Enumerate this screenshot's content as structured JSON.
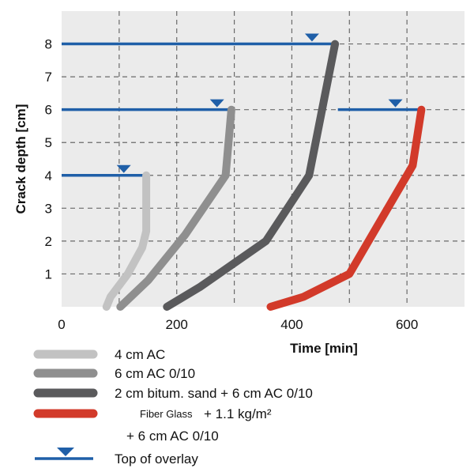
{
  "chart_data": {
    "type": "line",
    "xlabel": "Time [min]",
    "ylabel": "Crack depth [cm]",
    "xlim": [
      0,
      700
    ],
    "ylim": [
      0,
      9
    ],
    "x_ticks": [
      0,
      200,
      400,
      600
    ],
    "y_ticks": [
      1,
      2,
      3,
      4,
      5,
      6,
      7,
      8
    ],
    "grid": "dashed",
    "series": [
      {
        "name": "4 cm AC",
        "color": "#c2c2c2",
        "points": [
          [
            78,
            0
          ],
          [
            85,
            0.3
          ],
          [
            115,
            1.0
          ],
          [
            140,
            1.8
          ],
          [
            147,
            2.3
          ],
          [
            147,
            4.0
          ]
        ]
      },
      {
        "name": "6 cm AC 0/10",
        "color": "#8f8f8f",
        "points": [
          [
            102,
            0
          ],
          [
            150,
            0.8
          ],
          [
            215,
            2.2
          ],
          [
            285,
            4.0
          ],
          [
            295,
            6.0
          ]
        ]
      },
      {
        "name": "2 cm bitum. sand + 6 cm AC 0/10",
        "color": "#5a5a5c",
        "points": [
          [
            183,
            0
          ],
          [
            240,
            0.6
          ],
          [
            355,
            2.0
          ],
          [
            430,
            4.0
          ],
          [
            475,
            8.0
          ]
        ]
      },
      {
        "name": "Fiber Glass + 1.1 kg/m² + 6 cm AC 0/10",
        "color": "#d23a2a",
        "points": [
          [
            363,
            0
          ],
          [
            420,
            0.3
          ],
          [
            500,
            1.0
          ],
          [
            610,
            4.3
          ],
          [
            625,
            6.0
          ]
        ]
      }
    ],
    "overlay_lines": [
      {
        "y": 8,
        "x_start": 0,
        "x_end": 475,
        "marker_x": 435
      },
      {
        "y": 6,
        "x_start": 0,
        "x_end": 295,
        "marker_x": 270
      },
      {
        "y": 6,
        "x_start": 480,
        "x_end": 625,
        "marker_x": 580
      },
      {
        "y": 4,
        "x_start": 0,
        "x_end": 147,
        "marker_x": 108
      }
    ],
    "overlay_color": "#1f5fa8",
    "legend": [
      {
        "label": "4 cm AC",
        "color": "#c2c2c2",
        "kind": "line"
      },
      {
        "label": "6 cm AC 0/10",
        "color": "#8f8f8f",
        "kind": "line"
      },
      {
        "label": "2 cm bitum. sand + 6 cm AC 0/10",
        "color": "#5a5a5c",
        "kind": "line"
      },
      {
        "label_small": "Fiber Glass",
        "label": "+ 1.1 kg/m²",
        "label_line2": "+ 6 cm AC 0/10",
        "color": "#d23a2a",
        "kind": "line"
      },
      {
        "label": "Top of overlay",
        "color": "#1f5fa8",
        "kind": "marker"
      }
    ]
  }
}
